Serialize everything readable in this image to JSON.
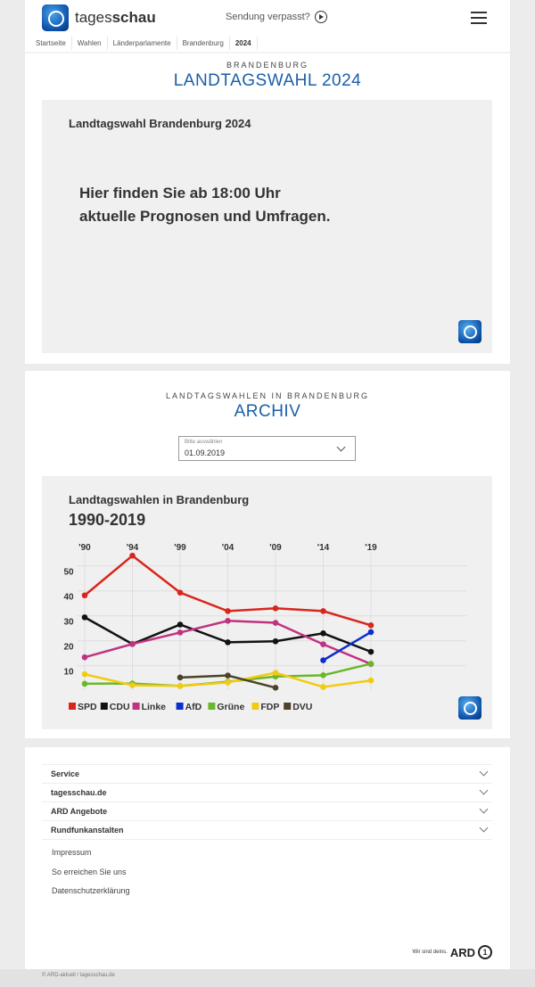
{
  "header": {
    "brand_light": "tages",
    "brand_bold": "schau",
    "sendung": "Sendung verpasst?"
  },
  "breadcrumb": [
    "Startseite",
    "Wahlen",
    "Länderparlamente",
    "Brandenburg",
    "2024"
  ],
  "hero": {
    "kicker": "BRANDENBURG",
    "title": "LANDTAGSWAHL 2024",
    "box_title": "Landtagswahl Brandenburg 2024",
    "line1": "Hier finden Sie ab 18:00 Uhr",
    "line2": "aktuelle Prognosen und Umfragen."
  },
  "archive": {
    "kicker": "LANDTAGSWAHLEN IN BRANDENBURG",
    "title": "ARCHIV",
    "select_label": "Bitte auswählen",
    "select_value": "01.09.2019"
  },
  "chart_data": {
    "type": "line",
    "title": "Landtagswahlen in Brandenburg",
    "subtitle": "1990-2019",
    "categories": [
      "'90",
      "'94",
      "'99",
      "'04",
      "'09",
      "'14",
      "'19"
    ],
    "yticks": [
      10,
      20,
      30,
      40,
      50
    ],
    "ylim": [
      0,
      55
    ],
    "grid": true,
    "legend": "bottom",
    "series": [
      {
        "name": "SPD",
        "color": "#d9261c",
        "values": [
          38.2,
          54.1,
          39.3,
          31.9,
          33.0,
          31.9,
          26.2
        ]
      },
      {
        "name": "CDU",
        "color": "#111111",
        "values": [
          29.4,
          18.7,
          26.5,
          19.4,
          19.8,
          23.0,
          15.6
        ]
      },
      {
        "name": "Linke",
        "color": "#c0337f",
        "values": [
          13.4,
          18.7,
          23.3,
          28.0,
          27.2,
          18.6,
          10.7
        ]
      },
      {
        "name": "AfD",
        "color": "#0a2fcc",
        "values": [
          null,
          null,
          null,
          null,
          null,
          12.2,
          23.5
        ]
      },
      {
        "name": "Grüne",
        "color": "#6ab82a",
        "values": [
          2.8,
          2.9,
          1.9,
          3.6,
          5.7,
          6.2,
          10.8
        ]
      },
      {
        "name": "FDP",
        "color": "#f2cb10",
        "values": [
          6.6,
          2.2,
          1.9,
          3.3,
          7.2,
          1.5,
          4.1
        ]
      },
      {
        "name": "DVU",
        "color": "#4c4328",
        "values": [
          null,
          null,
          5.3,
          6.1,
          1.2,
          null,
          null
        ]
      }
    ]
  },
  "footer": {
    "accordion": [
      "Service",
      "tagesschau.de",
      "ARD Angebote",
      "Rundfunkanstalten"
    ],
    "links": [
      "Impressum",
      "So erreichen Sie uns",
      "Datenschutzerklärung"
    ],
    "slogan": "Wir sind deins.",
    "ard": "ARD",
    "copyright": "© ARD-aktuell / tagesschau.de"
  }
}
